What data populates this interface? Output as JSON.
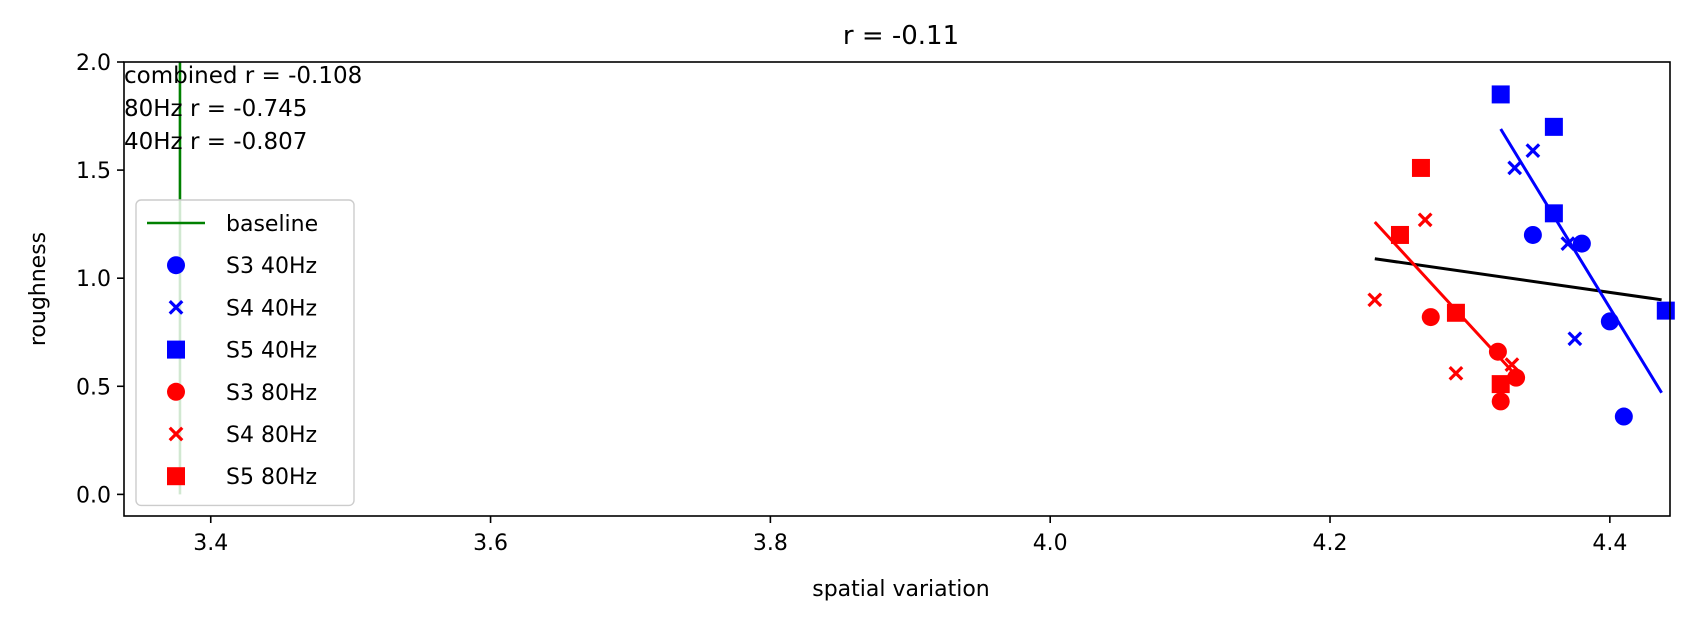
{
  "chart_data": {
    "type": "scatter",
    "title": "r = -0.11",
    "xlabel": "spatial variation",
    "ylabel": "roughness",
    "xlim": [
      3.338,
      4.443
    ],
    "ylim": [
      -0.1,
      2.0
    ],
    "xticks": [
      3.4,
      3.6,
      3.8,
      4.0,
      4.2,
      4.4
    ],
    "xtick_labels": [
      "3.4",
      "3.6",
      "3.8",
      "4.0",
      "4.2",
      "4.4"
    ],
    "yticks": [
      0.0,
      0.5,
      1.0,
      1.5,
      2.0
    ],
    "ytick_labels": [
      "0.0",
      "0.5",
      "1.0",
      "1.5",
      "2.0"
    ],
    "grid": false,
    "legend_position": "center-left",
    "annotations": [
      "combined r = -0.108",
      "80Hz r = -0.745",
      "40Hz r = -0.807"
    ],
    "baseline": {
      "name": "baseline",
      "color": "#008000",
      "x": 3.378,
      "y_range": [
        0.0,
        2.0
      ]
    },
    "series": [
      {
        "name": "S3 40Hz",
        "marker": "circle",
        "color": "#0000ff",
        "points": [
          [
            4.345,
            1.2
          ],
          [
            4.38,
            1.16
          ],
          [
            4.4,
            0.8
          ],
          [
            4.41,
            0.36
          ]
        ]
      },
      {
        "name": "S4 40Hz",
        "marker": "x",
        "color": "#0000ff",
        "points": [
          [
            4.332,
            1.51
          ],
          [
            4.345,
            1.59
          ],
          [
            4.37,
            1.16
          ],
          [
            4.375,
            0.72
          ]
        ]
      },
      {
        "name": "S5 40Hz",
        "marker": "square",
        "color": "#0000ff",
        "points": [
          [
            4.322,
            1.85
          ],
          [
            4.36,
            1.7
          ],
          [
            4.36,
            1.3
          ],
          [
            4.44,
            0.85
          ]
        ]
      },
      {
        "name": "S3 80Hz",
        "marker": "circle",
        "color": "#ff0000",
        "points": [
          [
            4.272,
            0.82
          ],
          [
            4.32,
            0.66
          ],
          [
            4.322,
            0.43
          ],
          [
            4.333,
            0.54
          ]
        ]
      },
      {
        "name": "S4 80Hz",
        "marker": "x",
        "color": "#ff0000",
        "points": [
          [
            4.232,
            0.9
          ],
          [
            4.268,
            1.27
          ],
          [
            4.29,
            0.56
          ],
          [
            4.33,
            0.6
          ]
        ]
      },
      {
        "name": "S5 80Hz",
        "marker": "square",
        "color": "#ff0000",
        "points": [
          [
            4.25,
            1.2
          ],
          [
            4.265,
            1.51
          ],
          [
            4.29,
            0.84
          ],
          [
            4.322,
            0.51
          ]
        ]
      }
    ],
    "fit_lines": [
      {
        "group": "combined",
        "color": "#000000",
        "points": [
          [
            4.232,
            1.09
          ],
          [
            4.437,
            0.9
          ]
        ]
      },
      {
        "group": "80Hz",
        "color": "#ff0000",
        "points": [
          [
            4.232,
            1.26
          ],
          [
            4.333,
            0.55
          ]
        ]
      },
      {
        "group": "40Hz",
        "color": "#0000ff",
        "points": [
          [
            4.322,
            1.69
          ],
          [
            4.437,
            0.47
          ]
        ]
      }
    ]
  }
}
